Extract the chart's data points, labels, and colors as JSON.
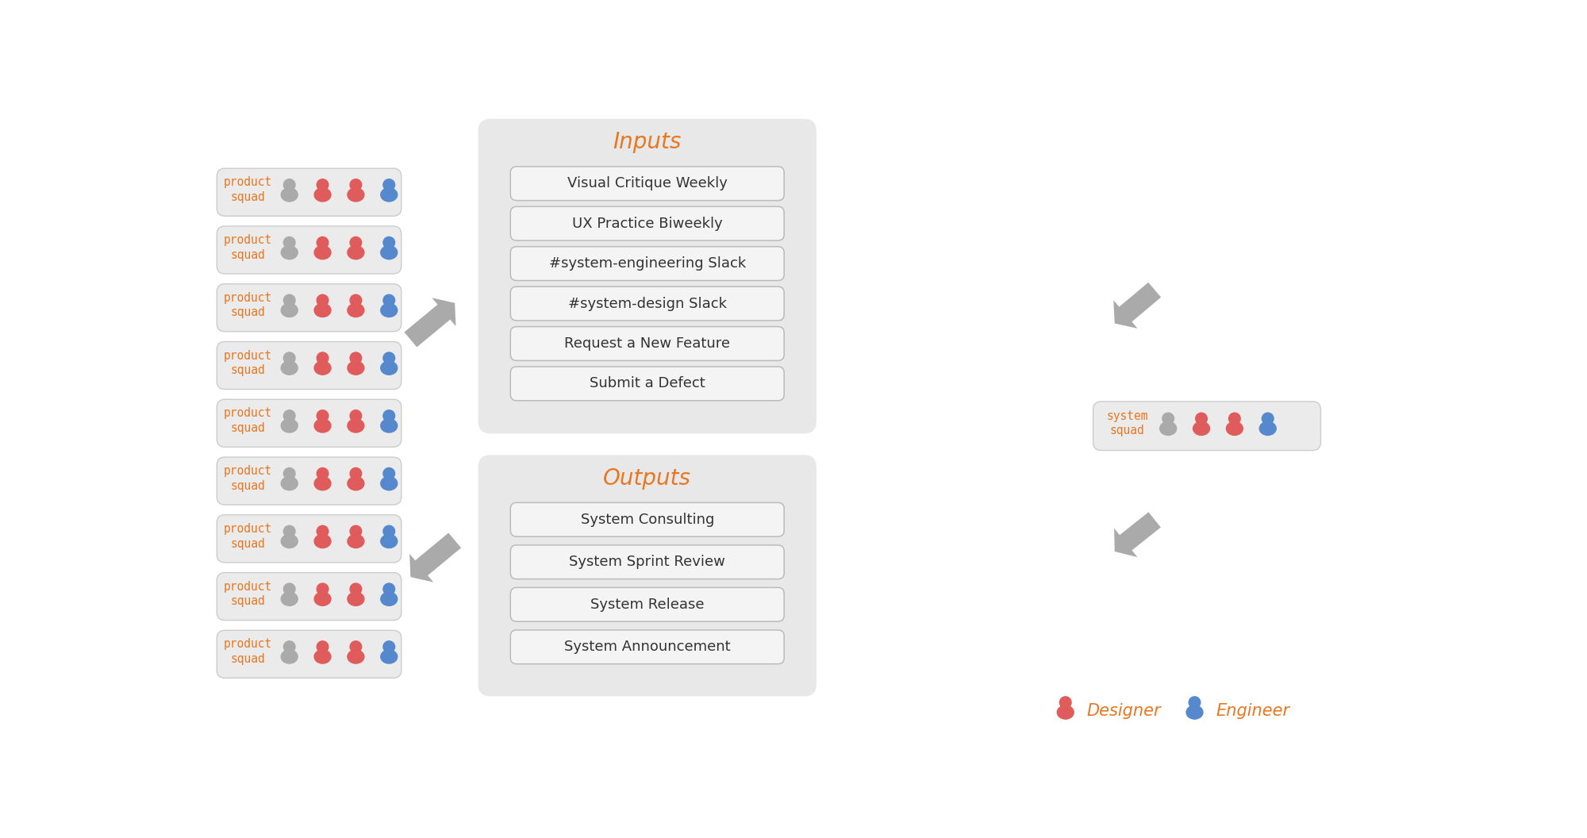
{
  "bg_color": "#ffffff",
  "squad_box_color": "#ebebeb",
  "squad_box_border": "#cccccc",
  "squad_text_color": "#e87722",
  "panel_bg_color": "#e8e8e8",
  "item_box_color": "#f4f4f4",
  "item_box_border": "#bbbbbb",
  "item_text_color": "#333333",
  "section_title_color": "#e87722",
  "arrow_color": "#aaaaaa",
  "designer_color": "#e05c5c",
  "engineer_color": "#5588cc",
  "gray_person_color": "#aaaaaa",
  "num_product_squads": 9,
  "inputs_title": "Inputs",
  "outputs_title": "Outputs",
  "input_items": [
    "Visual Critique Weekly",
    "UX Practice Biweekly",
    "#system-engineering Slack",
    "#system-design Slack",
    "Request a New Feature",
    "Submit a Defect"
  ],
  "output_items": [
    "System Consulting",
    "System Sprint Review",
    "System Release",
    "System Announcement"
  ],
  "system_squad_label": "system\nsquad",
  "product_squad_label": "product\nsquad",
  "legend_designer": "Designer",
  "legend_engineer": "Engineer",
  "squad_persons": [
    [
      "gray",
      "red",
      "red",
      "blue"
    ],
    [
      "gray",
      "red",
      "red",
      "blue"
    ],
    [
      "gray",
      "red",
      "red",
      "blue"
    ],
    [
      "gray",
      "red",
      "red",
      "blue"
    ],
    [
      "gray",
      "red",
      "red",
      "blue"
    ],
    [
      "gray",
      "red",
      "red",
      "blue"
    ],
    [
      "gray",
      "red",
      "red",
      "blue"
    ],
    [
      "gray",
      "red",
      "red",
      "blue"
    ],
    [
      "gray",
      "red",
      "red",
      "blue"
    ]
  ],
  "system_persons": [
    "gray",
    "red",
    "red",
    "blue"
  ]
}
